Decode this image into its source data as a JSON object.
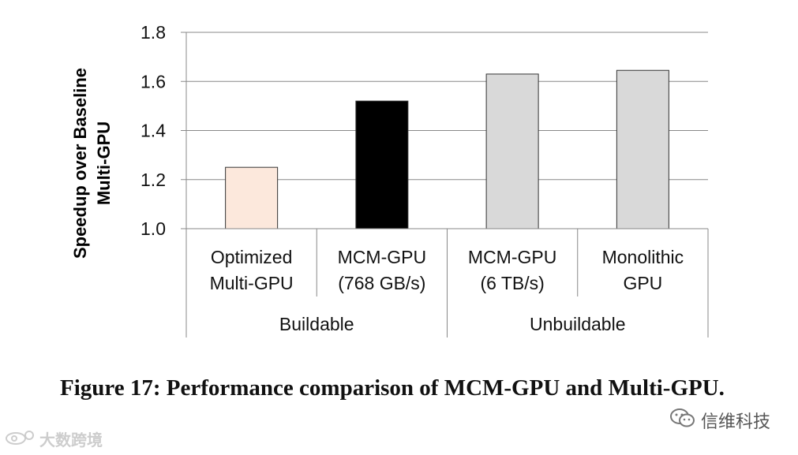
{
  "chart_data": {
    "type": "bar",
    "ylabel": "Speedup over Baseline Multi-GPU",
    "ylabel_lines": [
      "Speedup over Baseline",
      "Multi-GPU"
    ],
    "ylim": [
      1.0,
      1.8
    ],
    "yticks": [
      1.0,
      1.2,
      1.4,
      1.6,
      1.8
    ],
    "ytick_labels": [
      "1.0",
      "1.2",
      "1.4",
      "1.6",
      "1.8"
    ],
    "grid": true,
    "categories": [
      "Optimized Multi-GPU",
      "MCM-GPU (768 GB/s)",
      "MCM-GPU (6 TB/s)",
      "Monolithic GPU"
    ],
    "category_lines": [
      [
        "Optimized",
        "Multi-GPU"
      ],
      [
        "MCM-GPU",
        "(768 GB/s)"
      ],
      [
        "MCM-GPU",
        "(6 TB/s)"
      ],
      [
        "Monolithic",
        "GPU"
      ]
    ],
    "values": [
      1.25,
      1.52,
      1.63,
      1.645
    ],
    "bar_colors": [
      "#fce8dc",
      "#000000",
      "#d9d9d9",
      "#d9d9d9"
    ],
    "groups": [
      {
        "label": "Buildable",
        "categories": [
          0,
          1
        ]
      },
      {
        "label": "Unbuildable",
        "categories": [
          2,
          3
        ]
      }
    ]
  },
  "caption": "Figure 17: Performance comparison of MCM-GPU and Multi-GPU.",
  "watermark_right": {
    "icon": "wechat-icon",
    "text": "信维科技"
  },
  "watermark_left": {
    "icon": "weibo-icon",
    "text": "大数跨境"
  }
}
